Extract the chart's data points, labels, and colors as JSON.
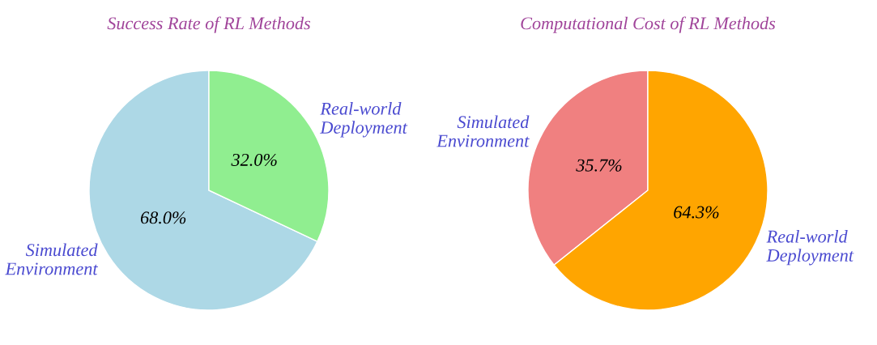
{
  "chart_data": [
    {
      "type": "pie",
      "title": "Success Rate of RL Methods",
      "categories": [
        "Simulated\nEnvironment",
        "Real-world\nDeployment"
      ],
      "values": [
        68.0,
        32.0
      ],
      "colors": [
        "#add8e6",
        "#90ee90"
      ],
      "value_labels": [
        "68.0%",
        "32.0%"
      ]
    },
    {
      "type": "pie",
      "title": "Computational Cost of RL Methods",
      "categories": [
        "Simulated\nEnvironment",
        "Real-world\nDeployment"
      ],
      "values": [
        35.7,
        64.3
      ],
      "colors": [
        "#f08080",
        "#ffa500"
      ],
      "value_labels": [
        "35.7%",
        "64.3%"
      ]
    }
  ]
}
